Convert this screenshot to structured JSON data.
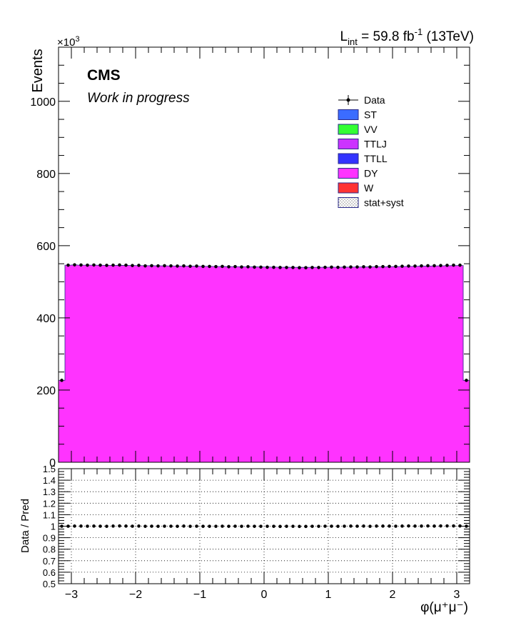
{
  "header": {
    "cms_label": "CMS",
    "status_label": "Work in progress",
    "lumi_prefix": "L",
    "lumi_sub": "int",
    "lumi_value": " = 59.8 fb",
    "lumi_sup": "-1",
    "lumi_suffix": " (13TeV)",
    "exponent_base": "×10",
    "exponent_power": "3"
  },
  "colors": {
    "ST": "#3b6cff",
    "VV": "#33ff33",
    "TTLJ": "#cc33ff",
    "TTLL": "#3333ff",
    "DY": "#ff33ff",
    "W": "#ff3333",
    "data": "#000000",
    "frame": "#000000"
  },
  "chart_data": [
    {
      "type": "bar",
      "stacked": true,
      "ylabel": "Events",
      "y_scale_label": "×10^3",
      "ylim": [
        0,
        1150000
      ],
      "xlim": [
        -3.2,
        3.2
      ],
      "y_ticks": [
        0,
        200,
        400,
        600,
        800,
        1000
      ],
      "bin_edges": [
        -3.2,
        -3.1,
        -3.0,
        -2.9,
        -2.8,
        -2.7,
        -2.6,
        -2.5,
        -2.4,
        -2.3,
        -2.2,
        -2.1,
        -2.0,
        -1.9,
        -1.8,
        -1.7,
        -1.6,
        -1.5,
        -1.4,
        -1.3,
        -1.2,
        -1.1,
        -1.0,
        -0.9,
        -0.8,
        -0.7,
        -0.6,
        -0.5,
        -0.4,
        -0.3,
        -0.2,
        -0.1,
        0.0,
        0.1,
        0.2,
        0.3,
        0.4,
        0.5,
        0.6,
        0.7,
        0.8,
        0.9,
        1.0,
        1.1,
        1.2,
        1.3,
        1.4,
        1.5,
        1.6,
        1.7,
        1.8,
        1.9,
        2.0,
        2.1,
        2.2,
        2.3,
        2.4,
        2.5,
        2.6,
        2.7,
        2.8,
        2.9,
        3.0,
        3.1,
        3.2
      ],
      "legend": [
        "Data",
        "ST",
        "VV",
        "TTLJ",
        "TTLL",
        "DY",
        "W",
        "stat+syst"
      ],
      "legend_position": "top-right",
      "series": [
        {
          "name": "DY",
          "values": [
            227000,
            546000,
            546500,
            546000,
            546000,
            546000,
            545800,
            545600,
            545600,
            545400,
            545200,
            545000,
            544800,
            544600,
            544400,
            544200,
            544000,
            543800,
            543600,
            543400,
            543200,
            543000,
            542800,
            542600,
            542400,
            542200,
            542000,
            541800,
            541600,
            541400,
            541200,
            541000,
            540800,
            540600,
            540400,
            540200,
            540000,
            540000,
            540000,
            540000,
            540100,
            540200,
            540300,
            540400,
            540500,
            540600,
            540800,
            541000,
            541200,
            541400,
            541600,
            541800,
            542000,
            542300,
            542600,
            542900,
            543200,
            543500,
            543800,
            544100,
            544400,
            544700,
            545000,
            227000
          ]
        }
      ],
      "data_points": {
        "name": "Data",
        "values": [
          227000,
          546000,
          547000,
          546500,
          546000,
          546500,
          546000,
          545500,
          546000,
          546500,
          546000,
          545000,
          545500,
          544000,
          544500,
          544000,
          544500,
          544000,
          543500,
          544000,
          543000,
          543500,
          542500,
          542500,
          542000,
          542500,
          541500,
          542000,
          541000,
          541500,
          540500,
          540500,
          540000,
          540000,
          539500,
          539500,
          539500,
          539000,
          539000,
          539500,
          539500,
          540000,
          540500,
          540000,
          540500,
          541000,
          541000,
          541500,
          541000,
          542000,
          542000,
          542500,
          542500,
          543000,
          543500,
          543500,
          544000,
          544500,
          544500,
          545000,
          545500,
          546000,
          546000,
          227000
        ]
      }
    },
    {
      "type": "scatter",
      "ylabel": "Data / Pred",
      "xlabel": "φ(μ⁺μ⁻)",
      "ylim": [
        0.5,
        1.5
      ],
      "xlim": [
        -3.2,
        3.2
      ],
      "y_tick_labels": [
        "0.5",
        "0.6",
        "0.7",
        "0.8",
        "0.9",
        "1",
        "1.1",
        "1.2",
        "1.3",
        "1.4",
        "1.5"
      ],
      "x_tick_labels": [
        "−3",
        "−2",
        "−1",
        "0",
        "1",
        "2",
        "3"
      ],
      "grid": true,
      "ratio_values": [
        1.0,
        1.0,
        1.001,
        1.001,
        1.0,
        1.001,
        1.0,
        0.999,
        1.001,
        1.002,
        1.001,
        1.0,
        1.001,
        0.999,
        1.0,
        0.999,
        1.0,
        1.0,
        0.999,
        1.001,
        0.999,
        1.0,
        0.999,
        0.999,
        0.999,
        1.0,
        0.999,
        1.0,
        0.999,
        1.0,
        0.999,
        0.999,
        0.999,
        0.999,
        0.998,
        0.999,
        0.999,
        0.998,
        0.998,
        0.999,
        0.999,
        1.0,
        1.0,
        0.999,
        1.0,
        1.001,
        1.0,
        1.001,
        0.999,
        1.001,
        1.001,
        1.001,
        1.0,
        1.001,
        1.002,
        1.001,
        1.001,
        1.002,
        1.001,
        1.002,
        1.002,
        1.002,
        1.002,
        1.0
      ]
    }
  ]
}
